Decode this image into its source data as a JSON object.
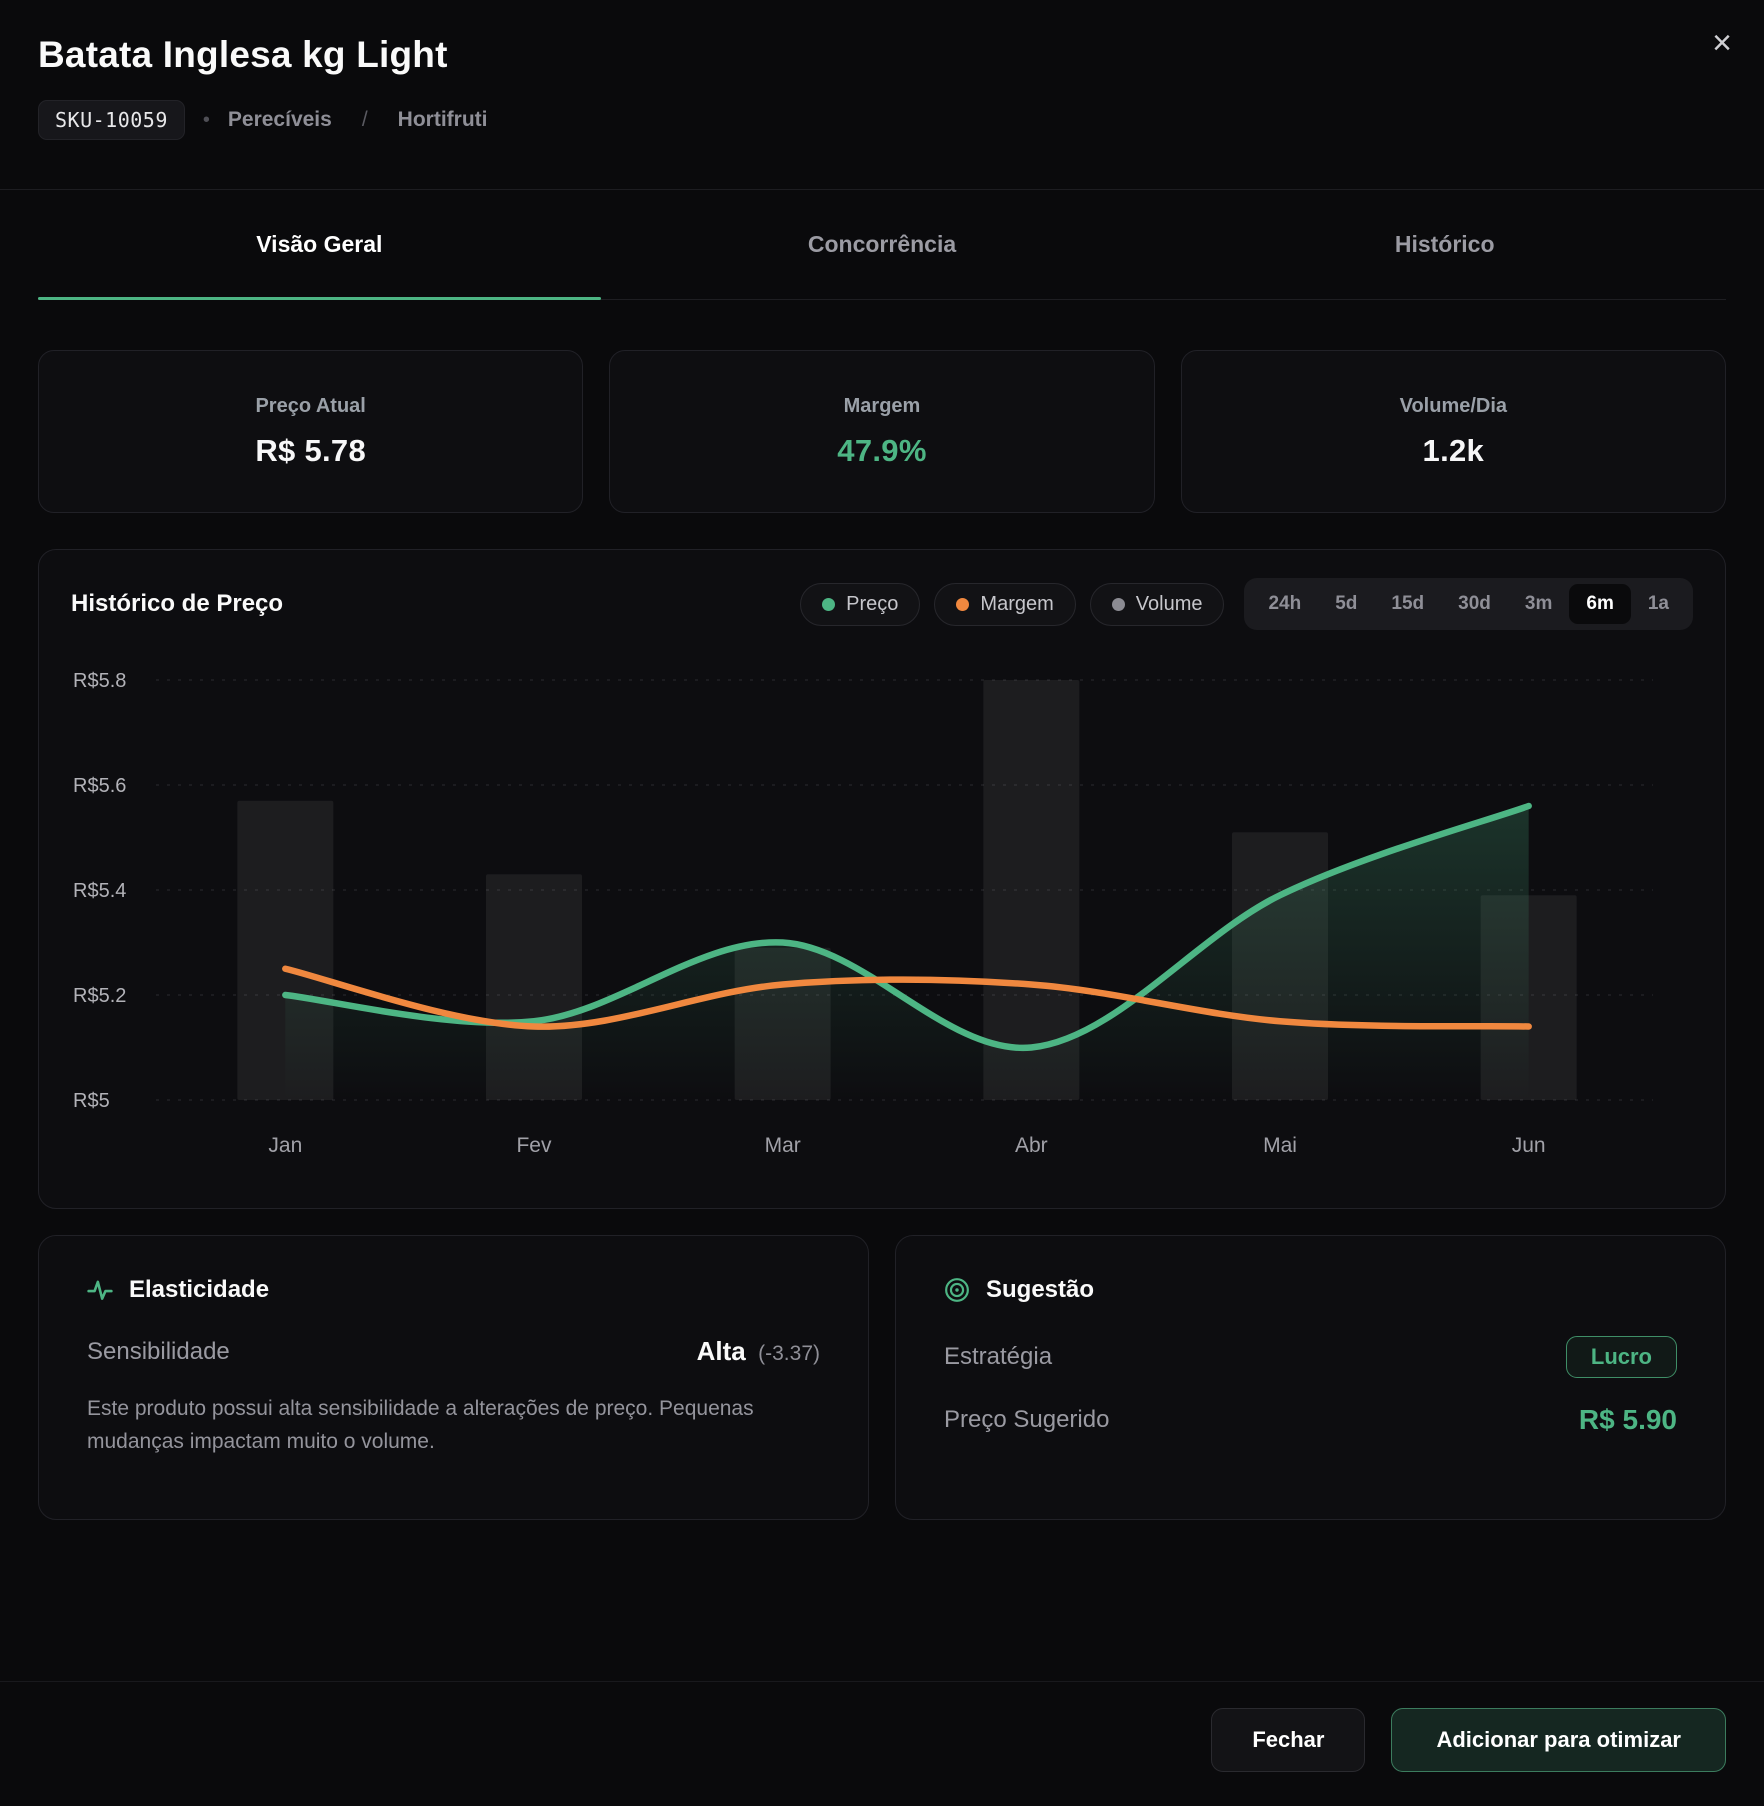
{
  "header": {
    "title": "Batata Inglesa kg Light",
    "sku": "SKU-10059",
    "dot": "•",
    "category": "Perecíveis",
    "slash": "/",
    "subcategory": "Hortifruti",
    "close_icon": "×"
  },
  "tabs": [
    {
      "label": "Visão Geral",
      "active": true
    },
    {
      "label": "Concorrência",
      "active": false
    },
    {
      "label": "Histórico",
      "active": false
    }
  ],
  "stats": [
    {
      "label": "Preço Atual",
      "value": "R$ 5.78",
      "accent": false
    },
    {
      "label": "Margem",
      "value": "47.9%",
      "accent": true
    },
    {
      "label": "Volume/Dia",
      "value": "1.2k",
      "accent": false
    }
  ],
  "chart": {
    "legend": [
      {
        "label": "Preço",
        "color": "#4db584"
      },
      {
        "label": "Margem",
        "color": "#f0883f"
      },
      {
        "label": "Volume",
        "color": "#8b8b92"
      }
    ],
    "time_ranges": [
      "24h",
      "5d",
      "15d",
      "30d",
      "3m",
      "6m",
      "1a"
    ],
    "active_range": "6m"
  },
  "chart_data": {
    "type": "line+bar",
    "title": "Histórico de Preço",
    "categories": [
      "Jan",
      "Fev",
      "Mar",
      "Abr",
      "Mai",
      "Jun"
    ],
    "ylim": [
      5.0,
      5.8
    ],
    "y_ticks": [
      {
        "value": 5.8,
        "label": "R$5.8"
      },
      {
        "value": 5.6,
        "label": "R$5.6"
      },
      {
        "value": 5.4,
        "label": "R$5.4"
      },
      {
        "value": 5.2,
        "label": "R$5.2"
      },
      {
        "value": 5.0,
        "label": "R$5"
      }
    ],
    "grid": "dashed-horizontal",
    "legend_position": "top-right",
    "series": [
      {
        "name": "Preço",
        "type": "line",
        "color": "#4db584",
        "fill": true,
        "values": [
          5.2,
          5.15,
          5.3,
          5.1,
          5.39,
          5.56
        ]
      },
      {
        "name": "Margem",
        "type": "line",
        "color": "#f0883f",
        "fill": false,
        "values": [
          5.25,
          5.14,
          5.22,
          5.22,
          5.15,
          5.14
        ]
      },
      {
        "name": "Volume",
        "type": "bar",
        "color": "rgba(255,255,255,0.065)",
        "values": [
          5.57,
          5.43,
          5.29,
          5.8,
          5.51,
          5.39
        ]
      }
    ]
  },
  "elasticity": {
    "title": "Elasticidade",
    "row_label": "Sensibilidade",
    "level": "Alta",
    "coefficient": "(-3.37)",
    "description": "Este produto possui alta sensibilidade a alterações de preço. Pequenas mudanças impactam muito o volume."
  },
  "suggestion": {
    "title": "Sugestão",
    "strategy_label": "Estratégia",
    "strategy_value": "Lucro",
    "price_label": "Preço Sugerido",
    "price_value": "R$ 5.90"
  },
  "footer": {
    "close_label": "Fechar",
    "primary_label": "Adicionar para otimizar"
  },
  "colors": {
    "accent_green": "#4db584",
    "accent_orange": "#f0883f",
    "background": "#0a0a0c",
    "card_bg": "#0d0d10",
    "border": "#212127"
  }
}
